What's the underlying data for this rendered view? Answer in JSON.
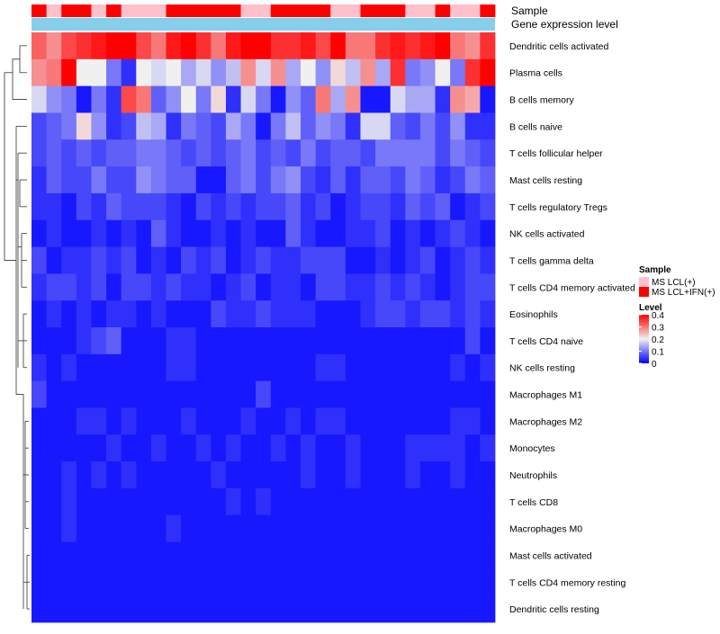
{
  "chart_data": {
    "type": "heatmap",
    "row_labels": [
      "Dendritic cells activated",
      "Plasma cells",
      "B cells memory",
      "B cells naive",
      "T cells follicular helper",
      "Mast cells resting",
      "T cells regulatory  Tregs",
      "NK cells activated",
      "T cells gamma delta",
      "T cells CD4 memory activated",
      "Eosinophils",
      "T cells CD4 naive",
      "NK cells resting",
      "Macrophages M1",
      "Macrophages M2",
      "Monocytes",
      "Neutrophils",
      "T cells CD8",
      "Macrophages M0",
      "Mast cells activated",
      "T cells CD4 memory resting",
      "Dendritic cells resting"
    ],
    "n_columns": 31,
    "annotations": {
      "sample_label": "Sample",
      "gene_expression_label": "Gene expression level",
      "sample_groups": [
        1,
        0,
        1,
        1,
        0,
        1,
        0,
        0,
        0,
        1,
        1,
        1,
        1,
        1,
        0,
        0,
        1,
        1,
        1,
        1,
        0,
        0,
        1,
        1,
        1,
        0,
        0,
        1,
        0,
        0,
        1
      ],
      "gene_expression_color": "#87CEEB"
    },
    "values": [
      [
        0.32,
        0.28,
        0.34,
        0.36,
        0.38,
        0.4,
        0.4,
        0.34,
        0.3,
        0.38,
        0.4,
        0.36,
        0.3,
        0.38,
        0.4,
        0.4,
        0.36,
        0.36,
        0.38,
        0.34,
        0.4,
        0.3,
        0.3,
        0.36,
        0.38,
        0.36,
        0.38,
        0.4,
        0.3,
        0.28,
        0.36
      ],
      [
        0.28,
        0.3,
        0.4,
        0.2,
        0.2,
        0.1,
        0.04,
        0.2,
        0.18,
        0.2,
        0.14,
        0.18,
        0.12,
        0.16,
        0.28,
        0.18,
        0.28,
        0.14,
        0.2,
        0.12,
        0.22,
        0.16,
        0.28,
        0.14,
        0.36,
        0.1,
        0.12,
        0.2,
        0.1,
        0.36,
        0.4
      ],
      [
        0.18,
        0.12,
        0.1,
        0.02,
        0.1,
        0.04,
        0.34,
        0.3,
        0.08,
        0.12,
        0.2,
        0.1,
        0.22,
        0.04,
        0.18,
        0.1,
        0.02,
        0.12,
        0.08,
        0.3,
        0.14,
        0.28,
        0.02,
        0.02,
        0.18,
        0.14,
        0.14,
        0.04,
        0.28,
        0.26,
        0.02
      ],
      [
        0.06,
        0.08,
        0.1,
        0.22,
        0.12,
        0.04,
        0.06,
        0.16,
        0.14,
        0.04,
        0.1,
        0.08,
        0.06,
        0.14,
        0.1,
        0.02,
        0.1,
        0.16,
        0.08,
        0.12,
        0.1,
        0.04,
        0.18,
        0.18,
        0.08,
        0.06,
        0.1,
        0.06,
        0.12,
        0.04,
        0.04
      ],
      [
        0.06,
        0.08,
        0.06,
        0.08,
        0.06,
        0.08,
        0.08,
        0.1,
        0.1,
        0.08,
        0.06,
        0.08,
        0.06,
        0.08,
        0.1,
        0.06,
        0.08,
        0.06,
        0.1,
        0.06,
        0.08,
        0.08,
        0.06,
        0.1,
        0.1,
        0.1,
        0.1,
        0.06,
        0.1,
        0.08,
        0.06
      ],
      [
        0.04,
        0.08,
        0.06,
        0.06,
        0.1,
        0.06,
        0.06,
        0.12,
        0.1,
        0.08,
        0.08,
        0.02,
        0.02,
        0.08,
        0.1,
        0.06,
        0.1,
        0.12,
        0.06,
        0.04,
        0.08,
        0.04,
        0.08,
        0.08,
        0.06,
        0.1,
        0.08,
        0.04,
        0.06,
        0.1,
        0.08
      ],
      [
        0.04,
        0.04,
        0.02,
        0.06,
        0.04,
        0.08,
        0.06,
        0.06,
        0.06,
        0.04,
        0.02,
        0.06,
        0.04,
        0.06,
        0.04,
        0.06,
        0.06,
        0.08,
        0.04,
        0.06,
        0.02,
        0.04,
        0.06,
        0.06,
        0.04,
        0.08,
        0.06,
        0.08,
        0.02,
        0.04,
        0.06
      ],
      [
        0.02,
        0.04,
        0.02,
        0.02,
        0.04,
        0.02,
        0.04,
        0.02,
        0.08,
        0.04,
        0.02,
        0.02,
        0.04,
        0.02,
        0.04,
        0.02,
        0.02,
        0.08,
        0.04,
        0.02,
        0.02,
        0.04,
        0.04,
        0.06,
        0.02,
        0.04,
        0.02,
        0.04,
        0.06,
        0.04,
        0.02
      ],
      [
        0.06,
        0.02,
        0.04,
        0.04,
        0.06,
        0.04,
        0.06,
        0.02,
        0.04,
        0.02,
        0.06,
        0.04,
        0.06,
        0.02,
        0.04,
        0.06,
        0.04,
        0.04,
        0.06,
        0.06,
        0.06,
        0.02,
        0.02,
        0.04,
        0.02,
        0.04,
        0.06,
        0.02,
        0.04,
        0.06,
        0.04
      ],
      [
        0.04,
        0.06,
        0.06,
        0.04,
        0.06,
        0.02,
        0.06,
        0.06,
        0.04,
        0.06,
        0.04,
        0.04,
        0.02,
        0.04,
        0.06,
        0.02,
        0.04,
        0.04,
        0.02,
        0.06,
        0.06,
        0.04,
        0.04,
        0.06,
        0.04,
        0.06,
        0.04,
        0.02,
        0.04,
        0.06,
        0.06
      ],
      [
        0.02,
        0.04,
        0.02,
        0.04,
        0.02,
        0.04,
        0.04,
        0.02,
        0.04,
        0.02,
        0.02,
        0.02,
        0.06,
        0.04,
        0.04,
        0.06,
        0.04,
        0.04,
        0.04,
        0.02,
        0.02,
        0.02,
        0.04,
        0.06,
        0.06,
        0.04,
        0.06,
        0.06,
        0.04,
        0.06,
        0.04
      ],
      [
        0.02,
        0.02,
        0.02,
        0.04,
        0.06,
        0.08,
        0.02,
        0.02,
        0.02,
        0.04,
        0.04,
        0.02,
        0.02,
        0.02,
        0.02,
        0.02,
        0.02,
        0.02,
        0.02,
        0.02,
        0.02,
        0.02,
        0.02,
        0.02,
        0.02,
        0.02,
        0.02,
        0.02,
        0.02,
        0.06,
        0.02
      ],
      [
        0.04,
        0.02,
        0.04,
        0.02,
        0.02,
        0.02,
        0.02,
        0.02,
        0.02,
        0.04,
        0.04,
        0.02,
        0.02,
        0.02,
        0.02,
        0.02,
        0.02,
        0.02,
        0.02,
        0.04,
        0.04,
        0.02,
        0.02,
        0.02,
        0.02,
        0.02,
        0.02,
        0.02,
        0.04,
        0.02,
        0.04
      ],
      [
        0.06,
        0.02,
        0.02,
        0.02,
        0.02,
        0.02,
        0.02,
        0.02,
        0.02,
        0.02,
        0.02,
        0.02,
        0.02,
        0.02,
        0.02,
        0.06,
        0.02,
        0.02,
        0.02,
        0.02,
        0.02,
        0.02,
        0.02,
        0.02,
        0.02,
        0.02,
        0.02,
        0.02,
        0.02,
        0.02,
        0.02
      ],
      [
        0.02,
        0.02,
        0.02,
        0.04,
        0.04,
        0.02,
        0.04,
        0.02,
        0.02,
        0.02,
        0.04,
        0.02,
        0.02,
        0.02,
        0.04,
        0.02,
        0.02,
        0.04,
        0.02,
        0.04,
        0.04,
        0.02,
        0.02,
        0.02,
        0.02,
        0.02,
        0.02,
        0.02,
        0.04,
        0.04,
        0.02
      ],
      [
        0.02,
        0.02,
        0.02,
        0.02,
        0.02,
        0.04,
        0.02,
        0.02,
        0.04,
        0.02,
        0.02,
        0.04,
        0.02,
        0.04,
        0.02,
        0.02,
        0.04,
        0.02,
        0.04,
        0.02,
        0.02,
        0.04,
        0.02,
        0.02,
        0.02,
        0.04,
        0.04,
        0.04,
        0.04,
        0.02,
        0.04
      ],
      [
        0.02,
        0.02,
        0.04,
        0.02,
        0.04,
        0.02,
        0.04,
        0.02,
        0.02,
        0.02,
        0.02,
        0.02,
        0.04,
        0.02,
        0.02,
        0.02,
        0.02,
        0.02,
        0.04,
        0.02,
        0.02,
        0.04,
        0.02,
        0.02,
        0.02,
        0.04,
        0.02,
        0.02,
        0.04,
        0.02,
        0.02
      ],
      [
        0.02,
        0.02,
        0.04,
        0.02,
        0.02,
        0.02,
        0.02,
        0.02,
        0.02,
        0.02,
        0.02,
        0.02,
        0.02,
        0.04,
        0.02,
        0.04,
        0.02,
        0.02,
        0.02,
        0.02,
        0.02,
        0.02,
        0.02,
        0.02,
        0.02,
        0.02,
        0.02,
        0.02,
        0.02,
        0.02,
        0.02
      ],
      [
        0.02,
        0.02,
        0.04,
        0.02,
        0.02,
        0.02,
        0.02,
        0.02,
        0.02,
        0.04,
        0.02,
        0.02,
        0.02,
        0.02,
        0.02,
        0.02,
        0.02,
        0.02,
        0.02,
        0.02,
        0.02,
        0.02,
        0.02,
        0.02,
        0.02,
        0.02,
        0.02,
        0.02,
        0.02,
        0.02,
        0.02
      ],
      [
        0.02,
        0.02,
        0.02,
        0.02,
        0.02,
        0.02,
        0.02,
        0.02,
        0.02,
        0.02,
        0.02,
        0.02,
        0.02,
        0.02,
        0.02,
        0.02,
        0.02,
        0.02,
        0.02,
        0.02,
        0.02,
        0.02,
        0.02,
        0.02,
        0.02,
        0.02,
        0.02,
        0.02,
        0.02,
        0.02,
        0.02
      ],
      [
        0.02,
        0.02,
        0.02,
        0.02,
        0.02,
        0.02,
        0.02,
        0.02,
        0.02,
        0.02,
        0.02,
        0.02,
        0.02,
        0.02,
        0.02,
        0.02,
        0.02,
        0.02,
        0.02,
        0.02,
        0.02,
        0.02,
        0.02,
        0.02,
        0.02,
        0.02,
        0.02,
        0.02,
        0.02,
        0.02,
        0.02
      ],
      [
        0.02,
        0.02,
        0.02,
        0.02,
        0.02,
        0.02,
        0.02,
        0.02,
        0.02,
        0.02,
        0.02,
        0.02,
        0.02,
        0.02,
        0.02,
        0.02,
        0.02,
        0.02,
        0.02,
        0.02,
        0.02,
        0.02,
        0.02,
        0.02,
        0.02,
        0.02,
        0.02,
        0.02,
        0.02,
        0.02,
        0.02
      ]
    ],
    "legend": {
      "sample_title": "Sample",
      "sample_items": [
        {
          "label": "MS LCL(+)",
          "color": "#FFC0CB"
        },
        {
          "label": "MS LCL+IFN(+)",
          "color": "#FF0000"
        }
      ],
      "level_title": "Level",
      "level_ticks": [
        "0.4",
        "0.3",
        "0.2",
        "0.1",
        "0"
      ],
      "level_range": [
        0,
        0.4
      ]
    },
    "colors": {
      "low": "#0000FF",
      "mid": "#F0F0F0",
      "high": "#FF0000",
      "midpoint": 0.2
    },
    "dendrogram": "row clustering dendrogram on left"
  }
}
